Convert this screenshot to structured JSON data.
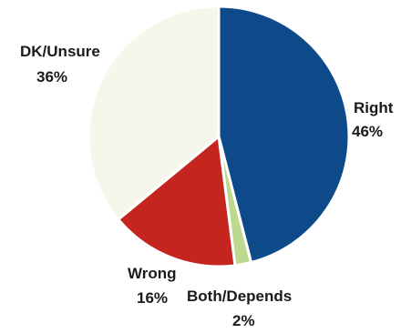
{
  "chart_data": {
    "type": "pie",
    "title": "",
    "categories": [
      "Right",
      "Both/Depends",
      "Wrong",
      "DK/Unsure"
    ],
    "values": [
      46,
      2,
      16,
      36
    ],
    "value_labels": [
      "46%",
      "2%",
      "16%",
      "36%"
    ],
    "colors": [
      "#0e4a8a",
      "#bcd98f",
      "#c4251f",
      "#f7f6ea"
    ],
    "legend": "none",
    "start_angle_deg": 0,
    "direction": "clockwise"
  }
}
